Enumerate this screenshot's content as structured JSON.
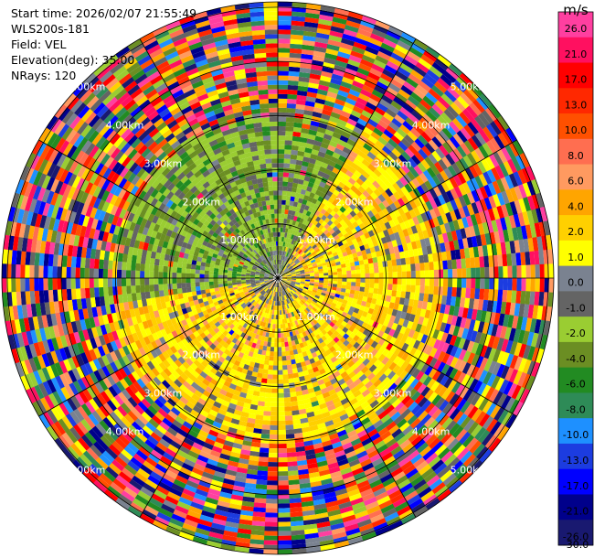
{
  "header": {
    "start_time": "Start time: 2026/02/07 21:55:49",
    "instrument": "WLS200s-181",
    "field": "Field: VEL",
    "elevation": "Elevation(deg): 35.00",
    "nrays": "NRays: 120"
  },
  "chart_data": {
    "type": "heatmap",
    "projection": "polar-ppi",
    "field": "VEL",
    "units": "m/s",
    "nrays": 120,
    "max_range_km": 5.1,
    "ring_ranges_km": [
      1,
      2,
      3,
      4,
      5
    ],
    "ring_labels": [
      "1.00km",
      "2.00km",
      "3.00km",
      "4.00km",
      "5.00km"
    ],
    "spoke_step_deg": 30,
    "colorbar": {
      "ticks": [
        "26.0",
        "21.0",
        "17.0",
        "13.0",
        "10.0",
        "8.0",
        "6.0",
        "4.0",
        "2.0",
        "1.0",
        "0.0",
        "-1.0",
        "-2.0",
        "-4.0",
        "-6.0",
        "-8.0",
        "-10.0",
        "-13.0",
        "-17.0",
        "-21.0",
        "-26.0",
        "-30.0"
      ],
      "colors": [
        "#ff3fa0",
        "#ff1060",
        "#ff0000",
        "#ff2800",
        "#ff5000",
        "#ff6e50",
        "#ff9a60",
        "#ffa500",
        "#ffd000",
        "#ffff00",
        "#7a8290",
        "#646464",
        "#9acd32",
        "#6b8e23",
        "#228b22",
        "#2e8b57",
        "#1e90ff",
        "#1c3ce0",
        "#0000ff",
        "#00008b",
        "#191970"
      ]
    },
    "pattern": {
      "near_range_km": 3.0,
      "positive_sector_deg": [
        30,
        260
      ],
      "negative_sector_deg": [
        260,
        390
      ],
      "noise_beyond_km": 3.0
    }
  }
}
